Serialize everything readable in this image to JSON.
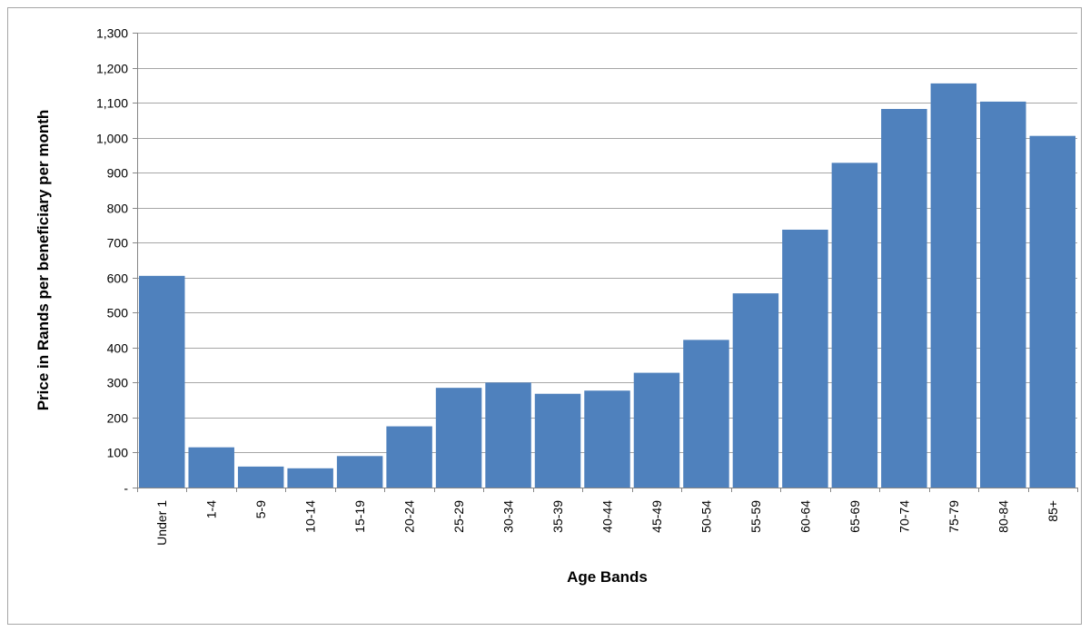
{
  "chart_data": {
    "type": "bar",
    "title": "",
    "xlabel": "Age Bands",
    "ylabel": "Price in Rands per beneficiary per month",
    "categories": [
      "Under 1",
      "1-4",
      "5-9",
      "10-14",
      "15-19",
      "20-24",
      "25-29",
      "30-34",
      "35-39",
      "40-44",
      "45-49",
      "50-54",
      "55-59",
      "60-64",
      "65-69",
      "70-74",
      "75-79",
      "80-84",
      "85+"
    ],
    "values": [
      605,
      115,
      60,
      55,
      90,
      175,
      285,
      300,
      268,
      277,
      328,
      422,
      555,
      737,
      928,
      1082,
      1155,
      1103,
      1005
    ],
    "ylim": [
      0,
      1300
    ],
    "yticks": [
      0,
      100,
      200,
      300,
      400,
      500,
      600,
      700,
      800,
      900,
      1000,
      1100,
      1200,
      1300
    ],
    "ytick_labels": [
      "-",
      "100",
      "200",
      "300",
      "400",
      "500",
      "600",
      "700",
      "800",
      "900",
      "1,000",
      "1,100",
      "1,200",
      "1,300"
    ],
    "grid": true,
    "legend": "none",
    "bar_color": "#4f81bd",
    "grid_color": "#a6a6a6"
  }
}
